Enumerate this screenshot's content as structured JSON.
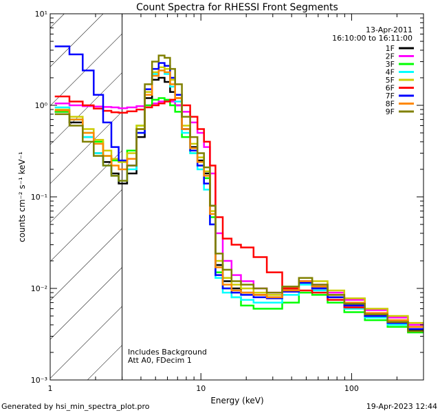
{
  "chart_data": {
    "type": "line",
    "title": "Count Spectra for RHESSI Front Segments",
    "xlabel": "Energy (keV)",
    "ylabel": "counts cm⁻² s⁻¹ keV⁻¹",
    "xscale": "log",
    "yscale": "log",
    "xlim": [
      1,
      300
    ],
    "ylim": [
      0.001,
      10
    ],
    "x_ticks": [
      {
        "value": 1,
        "label": "1"
      },
      {
        "value": 10,
        "label": "10"
      },
      {
        "value": 100,
        "label": "100"
      }
    ],
    "y_ticks": [
      {
        "value": 10,
        "label": "10¹"
      },
      {
        "value": 1,
        "label": "10⁰"
      },
      {
        "value": 0.1,
        "label": "10⁻¹"
      },
      {
        "value": 0.01,
        "label": "10⁻²"
      },
      {
        "value": 0.001,
        "label": "10⁻³"
      }
    ],
    "legend_position": "top-right",
    "date": "13-Apr-2011",
    "time_range": "16:10:00 to 16:11:00",
    "shaded_region": {
      "from": 1,
      "to": 3,
      "style": "diagonal-hatch"
    },
    "annotations": [
      "Includes Background",
      "Att A0, FDecim 1"
    ],
    "series": [
      {
        "name": "1F",
        "color": "#000000",
        "x": [
          1.2,
          1.5,
          1.8,
          2.1,
          2.4,
          2.7,
          3.0,
          3.5,
          4.0,
          4.5,
          5.0,
          5.5,
          6.0,
          6.5,
          7.0,
          8.0,
          9.0,
          10.0,
          11.0,
          12.0,
          13.0,
          15.0,
          17.0,
          20.0,
          25.0,
          30.0,
          40.0,
          50.0,
          60.0,
          80.0,
          100.0,
          150.0,
          200.0,
          280.0
        ],
        "values": [
          0.85,
          0.65,
          0.45,
          0.3,
          0.24,
          0.18,
          0.14,
          0.18,
          0.45,
          1.2,
          1.9,
          2.0,
          1.8,
          1.4,
          1.0,
          0.55,
          0.35,
          0.25,
          0.18,
          0.08,
          0.018,
          0.012,
          0.01,
          0.009,
          0.0085,
          0.008,
          0.0095,
          0.012,
          0.01,
          0.008,
          0.0065,
          0.005,
          0.0042,
          0.0035
        ]
      },
      {
        "name": "2F",
        "color": "#ff00ff",
        "x": [
          1.2,
          1.5,
          1.8,
          2.1,
          2.4,
          2.7,
          3.0,
          3.5,
          4.0,
          4.5,
          5.0,
          5.5,
          6.0,
          6.5,
          7.0,
          8.0,
          9.0,
          10.0,
          11.0,
          12.0,
          13.0,
          15.0,
          17.0,
          20.0,
          25.0,
          30.0,
          40.0,
          50.0,
          60.0,
          80.0,
          100.0,
          150.0,
          200.0,
          280.0
        ],
        "values": [
          1.05,
          1.0,
          0.98,
          0.97,
          0.96,
          0.95,
          0.93,
          0.95,
          0.98,
          1.0,
          1.05,
          1.1,
          1.12,
          1.1,
          1.0,
          0.85,
          0.65,
          0.5,
          0.35,
          0.18,
          0.04,
          0.02,
          0.014,
          0.012,
          0.01,
          0.009,
          0.01,
          0.012,
          0.011,
          0.009,
          0.0075,
          0.0058,
          0.0048,
          0.004
        ]
      },
      {
        "name": "3F",
        "color": "#00ff00",
        "x": [
          1.2,
          1.5,
          1.8,
          2.1,
          2.4,
          2.7,
          3.0,
          3.5,
          4.0,
          4.5,
          5.0,
          5.5,
          6.0,
          6.5,
          7.0,
          8.0,
          9.0,
          10.0,
          11.0,
          12.0,
          13.0,
          15.0,
          17.0,
          20.0,
          25.0,
          30.0,
          40.0,
          50.0,
          60.0,
          80.0,
          100.0,
          150.0,
          200.0,
          280.0
        ],
        "values": [
          0.85,
          0.7,
          0.5,
          0.4,
          0.28,
          0.25,
          0.24,
          0.32,
          0.6,
          1.0,
          1.15,
          1.2,
          1.15,
          1.0,
          0.85,
          0.45,
          0.3,
          0.22,
          0.16,
          0.06,
          0.015,
          0.01,
          0.008,
          0.0065,
          0.006,
          0.006,
          0.007,
          0.009,
          0.0085,
          0.007,
          0.0055,
          0.0045,
          0.0038,
          0.0033
        ]
      },
      {
        "name": "4F",
        "color": "#00ffff",
        "x": [
          1.2,
          1.5,
          1.8,
          2.1,
          2.4,
          2.7,
          3.0,
          3.5,
          4.0,
          4.5,
          5.0,
          5.5,
          6.0,
          6.5,
          7.0,
          8.0,
          9.0,
          10.0,
          11.0,
          12.0,
          13.0,
          15.0,
          17.0,
          20.0,
          25.0,
          30.0,
          40.0,
          50.0,
          60.0,
          80.0,
          100.0,
          150.0,
          200.0,
          280.0
        ],
        "values": [
          0.95,
          0.7,
          0.45,
          0.3,
          0.22,
          0.17,
          0.15,
          0.2,
          0.5,
          1.3,
          2.2,
          2.4,
          2.2,
          1.6,
          1.1,
          0.5,
          0.3,
          0.2,
          0.12,
          0.05,
          0.013,
          0.009,
          0.008,
          0.0075,
          0.007,
          0.007,
          0.0085,
          0.011,
          0.0095,
          0.0075,
          0.006,
          0.0048,
          0.004,
          0.0034
        ]
      },
      {
        "name": "5F",
        "color": "#cccc00",
        "x": [
          1.2,
          1.5,
          1.8,
          2.1,
          2.4,
          2.7,
          3.0,
          3.5,
          4.0,
          4.5,
          5.0,
          5.5,
          6.0,
          6.5,
          7.0,
          8.0,
          9.0,
          10.0,
          11.0,
          12.0,
          13.0,
          15.0,
          17.0,
          20.0,
          25.0,
          30.0,
          40.0,
          50.0,
          60.0,
          80.0,
          100.0,
          150.0,
          200.0,
          280.0
        ],
        "values": [
          0.9,
          0.75,
          0.55,
          0.42,
          0.32,
          0.26,
          0.24,
          0.3,
          0.6,
          1.4,
          2.3,
          2.6,
          2.5,
          1.9,
          1.3,
          0.6,
          0.38,
          0.27,
          0.19,
          0.07,
          0.02,
          0.013,
          0.011,
          0.01,
          0.009,
          0.0085,
          0.01,
          0.013,
          0.012,
          0.0095,
          0.0078,
          0.006,
          0.005,
          0.0042
        ]
      },
      {
        "name": "6F",
        "color": "#ff0000",
        "x": [
          1.2,
          1.5,
          1.8,
          2.1,
          2.4,
          2.7,
          3.0,
          3.5,
          4.0,
          4.5,
          5.0,
          5.5,
          6.0,
          6.5,
          7.0,
          8.0,
          9.0,
          10.0,
          11.0,
          12.0,
          13.0,
          15.0,
          17.0,
          20.0,
          25.0,
          30.0,
          40.0,
          50.0,
          60.0,
          80.0,
          100.0,
          150.0,
          200.0,
          280.0
        ],
        "values": [
          1.25,
          1.1,
          1.0,
          0.92,
          0.87,
          0.84,
          0.83,
          0.86,
          0.9,
          0.95,
          1.0,
          1.05,
          1.1,
          1.15,
          1.2,
          1.0,
          0.75,
          0.55,
          0.4,
          0.22,
          0.06,
          0.035,
          0.03,
          0.028,
          0.022,
          0.015,
          0.01,
          0.0095,
          0.009,
          0.0075,
          0.0062,
          0.005,
          0.0043,
          0.0038
        ]
      },
      {
        "name": "7F",
        "color": "#0000ff",
        "x": [
          1.2,
          1.5,
          1.8,
          2.1,
          2.4,
          2.7,
          3.0,
          3.5,
          4.0,
          4.5,
          5.0,
          5.5,
          6.0,
          6.5,
          7.0,
          8.0,
          9.0,
          10.0,
          11.0,
          12.0,
          13.0,
          15.0,
          17.0,
          20.0,
          25.0,
          30.0,
          40.0,
          50.0,
          60.0,
          80.0,
          100.0,
          150.0,
          200.0,
          280.0
        ],
        "values": [
          4.4,
          3.6,
          2.4,
          1.3,
          0.65,
          0.35,
          0.25,
          0.22,
          0.5,
          1.5,
          2.5,
          2.9,
          2.7,
          2.0,
          1.3,
          0.55,
          0.32,
          0.22,
          0.14,
          0.05,
          0.014,
          0.01,
          0.009,
          0.0085,
          0.008,
          0.0078,
          0.0092,
          0.0115,
          0.01,
          0.008,
          0.0065,
          0.005,
          0.0042,
          0.0036
        ]
      },
      {
        "name": "8F",
        "color": "#ff8800",
        "x": [
          1.2,
          1.5,
          1.8,
          2.1,
          2.4,
          2.7,
          3.0,
          3.5,
          4.0,
          4.5,
          5.0,
          5.5,
          6.0,
          6.5,
          7.0,
          8.0,
          9.0,
          10.0,
          11.0,
          12.0,
          13.0,
          15.0,
          17.0,
          20.0,
          25.0,
          30.0,
          40.0,
          50.0,
          60.0,
          80.0,
          100.0,
          150.0,
          200.0,
          280.0
        ],
        "values": [
          0.88,
          0.7,
          0.5,
          0.38,
          0.28,
          0.22,
          0.2,
          0.26,
          0.55,
          1.3,
          2.1,
          2.4,
          2.3,
          1.7,
          1.2,
          0.55,
          0.34,
          0.24,
          0.17,
          0.065,
          0.017,
          0.011,
          0.0095,
          0.009,
          0.0085,
          0.008,
          0.0095,
          0.012,
          0.0105,
          0.0085,
          0.007,
          0.0054,
          0.0045,
          0.0038
        ]
      },
      {
        "name": "9F",
        "color": "#808000",
        "x": [
          1.2,
          1.5,
          1.8,
          2.1,
          2.4,
          2.7,
          3.0,
          3.5,
          4.0,
          4.5,
          5.0,
          5.5,
          6.0,
          6.5,
          7.0,
          8.0,
          9.0,
          10.0,
          11.0,
          12.0,
          13.0,
          15.0,
          17.0,
          20.0,
          25.0,
          30.0,
          40.0,
          50.0,
          60.0,
          80.0,
          100.0,
          150.0,
          200.0,
          280.0
        ],
        "values": [
          0.8,
          0.6,
          0.4,
          0.28,
          0.22,
          0.17,
          0.15,
          0.22,
          0.55,
          1.7,
          3.0,
          3.5,
          3.3,
          2.5,
          1.7,
          0.75,
          0.45,
          0.3,
          0.21,
          0.08,
          0.024,
          0.016,
          0.012,
          0.011,
          0.01,
          0.009,
          0.0105,
          0.013,
          0.011,
          0.0085,
          0.0068,
          0.0052,
          0.0043,
          0.0034
        ]
      }
    ]
  },
  "footer": {
    "generator": "Generated by hsi_min_spectra_plot.pro",
    "generated_date": "19-Apr-2023 12:44"
  }
}
